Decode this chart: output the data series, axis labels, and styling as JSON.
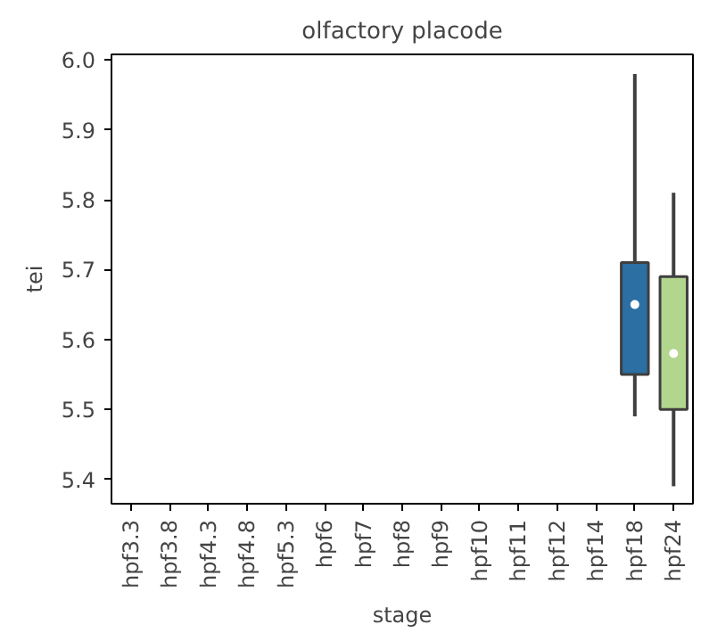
{
  "chart_data": {
    "type": "box",
    "title": "olfactory placode",
    "xlabel": "stage",
    "ylabel": "tei",
    "categories": [
      "hpf3.3",
      "hpf3.8",
      "hpf4.3",
      "hpf4.8",
      "hpf5.3",
      "hpf6",
      "hpf7",
      "hpf8",
      "hpf9",
      "hpf10",
      "hpf11",
      "hpf12",
      "hpf14",
      "hpf18",
      "hpf24"
    ],
    "colors": [
      null,
      null,
      null,
      null,
      null,
      null,
      null,
      null,
      null,
      null,
      null,
      null,
      null,
      "#2b6fa3",
      "#b3d68e"
    ],
    "boxes": [
      null,
      null,
      null,
      null,
      null,
      null,
      null,
      null,
      null,
      null,
      null,
      null,
      null,
      {
        "low": 5.49,
        "q1": 5.55,
        "median": 5.65,
        "q3": 5.71,
        "high": 5.98
      },
      {
        "low": 5.39,
        "q1": 5.5,
        "median": 5.58,
        "q3": 5.69,
        "high": 5.81
      }
    ],
    "ylim": [
      5.365,
      6.008
    ],
    "yticks": [
      5.4,
      5.5,
      5.6,
      5.7,
      5.8,
      5.9,
      {
        "value": 6.0,
        "label": "6.0"
      }
    ],
    "grid": false
  }
}
